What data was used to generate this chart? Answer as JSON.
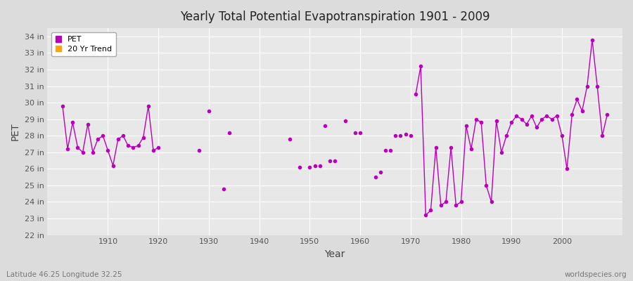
{
  "title": "Yearly Total Potential Evapotranspiration 1901 - 2009",
  "xlabel": "Year",
  "ylabel": "PET",
  "subtitle_left": "Latitude 46.25 Longitude 32.25",
  "subtitle_right": "worldspecies.org",
  "ylim": [
    22,
    34.5
  ],
  "ytick_labels": [
    "22 in",
    "23 in",
    "24 in",
    "25 in",
    "26 in",
    "27 in",
    "28 in",
    "29 in",
    "30 in",
    "31 in",
    "32 in",
    "33 in",
    "34 in"
  ],
  "ytick_values": [
    22,
    23,
    24,
    25,
    26,
    27,
    28,
    29,
    30,
    31,
    32,
    33,
    34
  ],
  "line_color": "#BB00BB",
  "trend_color": "#FFA500",
  "bg_color": "#DCDCDC",
  "plot_bg_color": "#E8E8E8",
  "grid_color": "#FFFFFF",
  "legend_entries": [
    "PET",
    "20 Yr Trend"
  ],
  "years": [
    1901,
    1902,
    1903,
    1904,
    1905,
    1906,
    1907,
    1908,
    1909,
    1910,
    1911,
    1912,
    1913,
    1914,
    1915,
    1916,
    1917,
    1918,
    1919,
    1920,
    1928,
    1930,
    1933,
    1934,
    1946,
    1948,
    1950,
    1951,
    1952,
    1953,
    1954,
    1955,
    1957,
    1959,
    1960,
    1963,
    1964,
    1965,
    1966,
    1967,
    1968,
    1969,
    1970,
    1971,
    1972,
    1973,
    1974,
    1975,
    1976,
    1977,
    1978,
    1979,
    1980,
    1981,
    1982,
    1983,
    1984,
    1985,
    1986,
    1987,
    1988,
    1989,
    1990,
    1991,
    1992,
    1993,
    1994,
    1995,
    1996,
    1997,
    1998,
    1999,
    2000,
    2001,
    2002,
    2003,
    2004,
    2005,
    2006,
    2007,
    2008,
    2009
  ],
  "pet_values": [
    29.8,
    27.2,
    28.8,
    27.3,
    27.0,
    28.7,
    27.0,
    27.8,
    28.0,
    27.1,
    26.2,
    27.8,
    28.0,
    27.4,
    27.3,
    27.4,
    27.9,
    29.8,
    27.1,
    27.3,
    27.1,
    29.5,
    24.8,
    28.2,
    27.8,
    26.1,
    26.1,
    26.2,
    26.2,
    28.6,
    26.5,
    26.5,
    28.9,
    28.2,
    28.2,
    25.5,
    25.8,
    27.1,
    27.1,
    28.0,
    28.0,
    28.1,
    28.0,
    30.5,
    32.2,
    23.2,
    23.5,
    27.3,
    23.8,
    24.0,
    27.3,
    23.8,
    24.0,
    28.6,
    27.2,
    29.0,
    28.8,
    25.0,
    24.0,
    28.9,
    27.0,
    28.0,
    28.8,
    29.2,
    29.0,
    28.7,
    29.2,
    28.5,
    29.0,
    29.2,
    29.0,
    29.2,
    28.0,
    26.0,
    29.3,
    30.2,
    29.5,
    31.0,
    33.8,
    31.0,
    28.0,
    29.3
  ],
  "connected_segments": [
    [
      1901,
      1902,
      1903,
      1904,
      1905,
      1906,
      1907,
      1908,
      1909,
      1910,
      1911,
      1912,
      1913,
      1914,
      1915,
      1916,
      1917,
      1918,
      1919,
      1920
    ],
    [
      1971,
      1972,
      1973,
      1974,
      1975,
      1976,
      1977,
      1978,
      1979,
      1980,
      1981,
      1982,
      1983,
      1984,
      1985,
      1986,
      1987,
      1988,
      1989,
      1990,
      1991,
      1992,
      1993,
      1994,
      1995,
      1996,
      1997,
      1998,
      1999,
      2000,
      2001,
      2002,
      2003,
      2004,
      2005,
      2006,
      2007,
      2008,
      2009
    ]
  ],
  "xlim": [
    1898,
    2012
  ]
}
